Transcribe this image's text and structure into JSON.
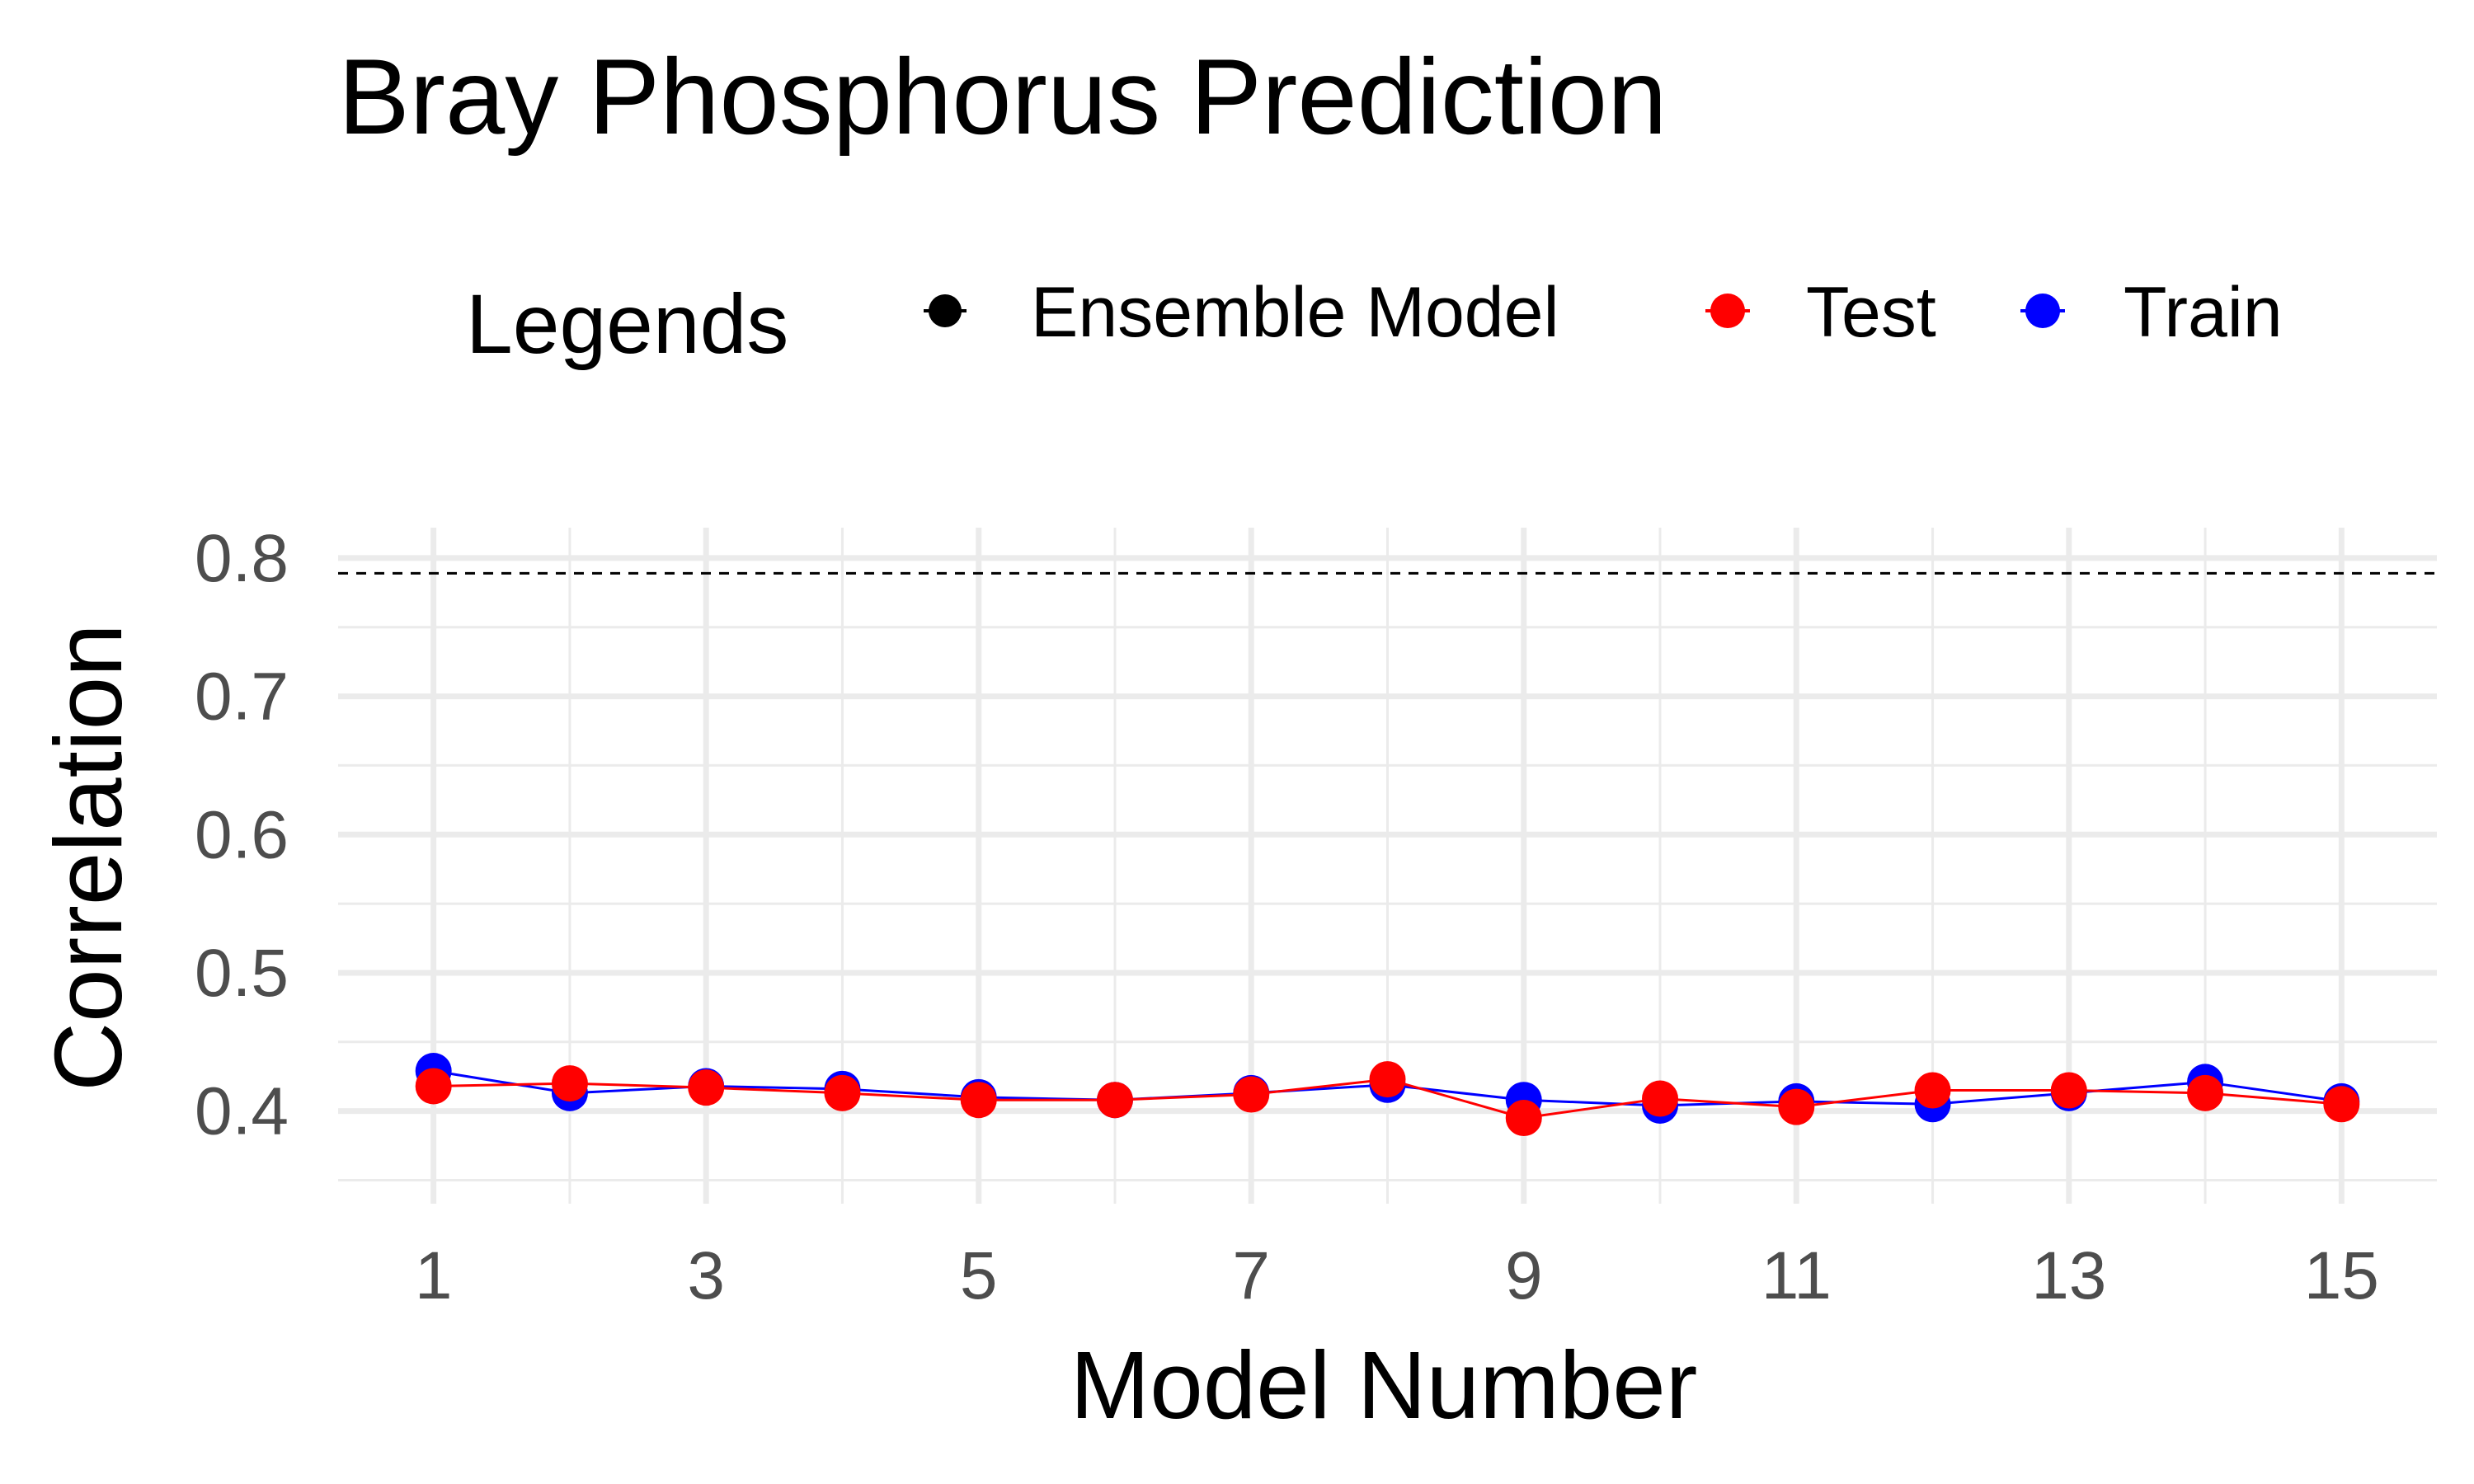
{
  "chart_data": {
    "type": "line",
    "title": "Bray Phosphorus Prediction",
    "xlabel": "Model Number",
    "ylabel": "Correlation",
    "legend_title": "Legends",
    "legend_position": "top",
    "grid": true,
    "xlim": [
      0.3,
      15.7
    ],
    "ylim": [
      0.333,
      0.822
    ],
    "x_ticks": [
      1,
      3,
      5,
      7,
      9,
      11,
      13,
      15
    ],
    "y_ticks": [
      0.4,
      0.5,
      0.6,
      0.7,
      0.8
    ],
    "x_tick_labels": [
      "1",
      "3",
      "5",
      "7",
      "9",
      "11",
      "13",
      "15"
    ],
    "y_tick_labels": [
      "0.4",
      "0.5",
      "0.6",
      "0.7",
      "0.8"
    ],
    "x": [
      1,
      2,
      3,
      4,
      5,
      6,
      7,
      8,
      9,
      10,
      11,
      12,
      13,
      14,
      15
    ],
    "series": [
      {
        "name": "Train",
        "color": "#0000ff",
        "values": [
          0.429,
          0.413,
          0.418,
          0.416,
          0.41,
          0.408,
          0.413,
          0.419,
          0.408,
          0.404,
          0.407,
          0.405,
          0.413,
          0.421,
          0.407
        ]
      },
      {
        "name": "Test",
        "color": "#ff0000",
        "values": [
          0.418,
          0.42,
          0.417,
          0.413,
          0.408,
          0.408,
          0.412,
          0.423,
          0.395,
          0.409,
          0.403,
          0.415,
          0.415,
          0.413,
          0.405
        ]
      }
    ],
    "reference_lines": [
      {
        "name": "Ensemble Model",
        "orientation": "horizontal",
        "y": 0.789,
        "color": "#000000",
        "style": "dashed"
      }
    ],
    "legend_entries": [
      "Ensemble Model",
      "Test",
      "Train"
    ]
  }
}
